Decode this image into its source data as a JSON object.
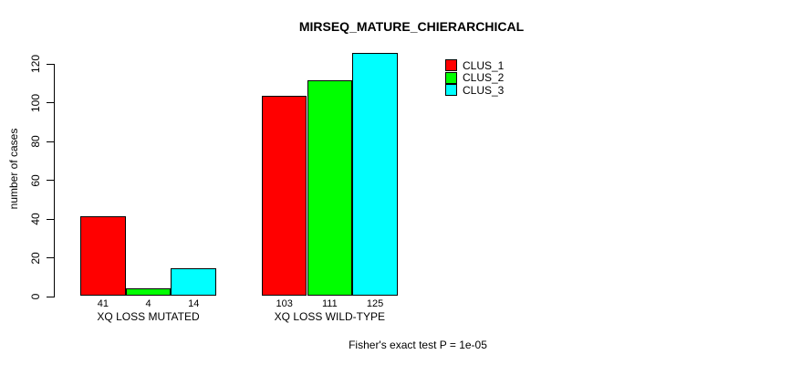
{
  "chart_data": {
    "type": "bar",
    "title": "MIRSEQ_MATURE_CHIERARCHICAL",
    "ylabel": "number of cases",
    "xlabel": "",
    "categories": [
      "XQ LOSS MUTATED",
      "XQ LOSS WILD-TYPE"
    ],
    "series": [
      {
        "name": "CLUS_1",
        "color": "#ff0000",
        "values": [
          41,
          103
        ]
      },
      {
        "name": "CLUS_2",
        "color": "#00ff00",
        "values": [
          4,
          111
        ]
      },
      {
        "name": "CLUS_3",
        "color": "#00ffff",
        "values": [
          14,
          125
        ]
      }
    ],
    "bar_value_labels": {
      "XQ LOSS MUTATED": [
        41,
        4,
        14
      ],
      "XQ LOSS WILD-TYPE": [
        103,
        111,
        125
      ]
    },
    "ylim": [
      0,
      120
    ],
    "yticks": [
      0,
      20,
      40,
      60,
      80,
      100,
      120
    ],
    "grid": false,
    "legend_position": "top-right-inside",
    "legend_entries": [
      "CLUS_1",
      "CLUS_2",
      "CLUS_3"
    ],
    "footnote": "Fisher's exact test P = 1e-05",
    "colors": {
      "background": "#ffffff",
      "axis": "#000000",
      "text": "#000000"
    }
  }
}
